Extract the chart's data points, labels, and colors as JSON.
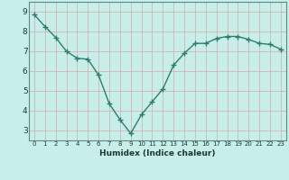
{
  "x": [
    0,
    1,
    2,
    3,
    4,
    5,
    6,
    7,
    8,
    9,
    10,
    11,
    12,
    13,
    14,
    15,
    16,
    17,
    18,
    19,
    20,
    21,
    22,
    23
  ],
  "y": [
    8.85,
    8.25,
    7.7,
    7.0,
    6.65,
    6.6,
    5.8,
    4.35,
    3.55,
    2.85,
    3.8,
    4.45,
    5.1,
    6.3,
    6.9,
    7.4,
    7.4,
    7.65,
    7.75,
    7.75,
    7.6,
    7.4,
    7.35,
    7.1
  ],
  "line_color": "#2e7d6e",
  "marker": "+",
  "bg_color": "#c8eeea",
  "grid_color": "#d4a8a8",
  "xlabel": "Humidex (Indice chaleur)",
  "ylim": [
    2.5,
    9.5
  ],
  "xlim": [
    -0.5,
    23.5
  ],
  "yticks": [
    3,
    4,
    5,
    6,
    7,
    8,
    9
  ],
  "xticks": [
    0,
    1,
    2,
    3,
    4,
    5,
    6,
    7,
    8,
    9,
    10,
    11,
    12,
    13,
    14,
    15,
    16,
    17,
    18,
    19,
    20,
    21,
    22,
    23
  ],
  "xlabel_fontsize": 6.5,
  "tick_fontsize_x": 5.0,
  "tick_fontsize_y": 6.5,
  "spine_color": "#5a8a80"
}
